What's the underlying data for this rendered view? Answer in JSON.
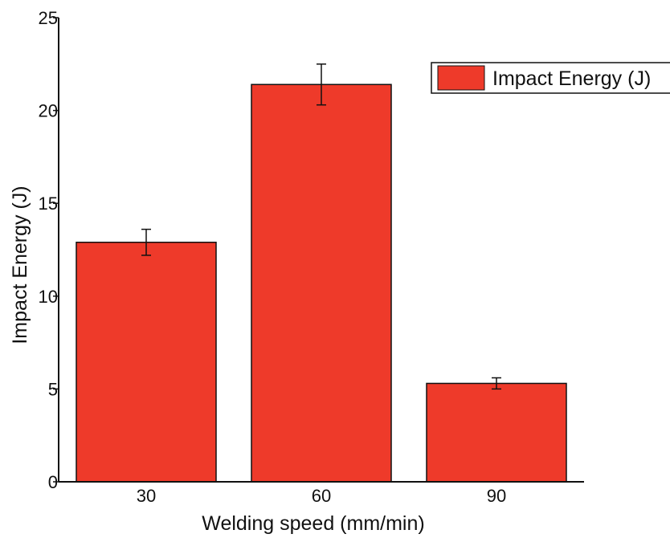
{
  "chart_data": {
    "type": "bar",
    "title": "",
    "xlabel": "Welding speed (mm/min)",
    "ylabel": "Impact Energy (J)",
    "categories": [
      "30",
      "60",
      "90"
    ],
    "series": [
      {
        "name": "Impact Energy (J)",
        "values": [
          12.9,
          21.4,
          5.3
        ],
        "error": [
          0.7,
          1.1,
          0.3
        ],
        "color": "#ee3a2a"
      }
    ],
    "ylim": [
      0,
      25
    ],
    "yticks": [
      "0",
      "5",
      "10",
      "15",
      "20",
      "25"
    ],
    "grid": false,
    "legend_position": "top-right"
  }
}
